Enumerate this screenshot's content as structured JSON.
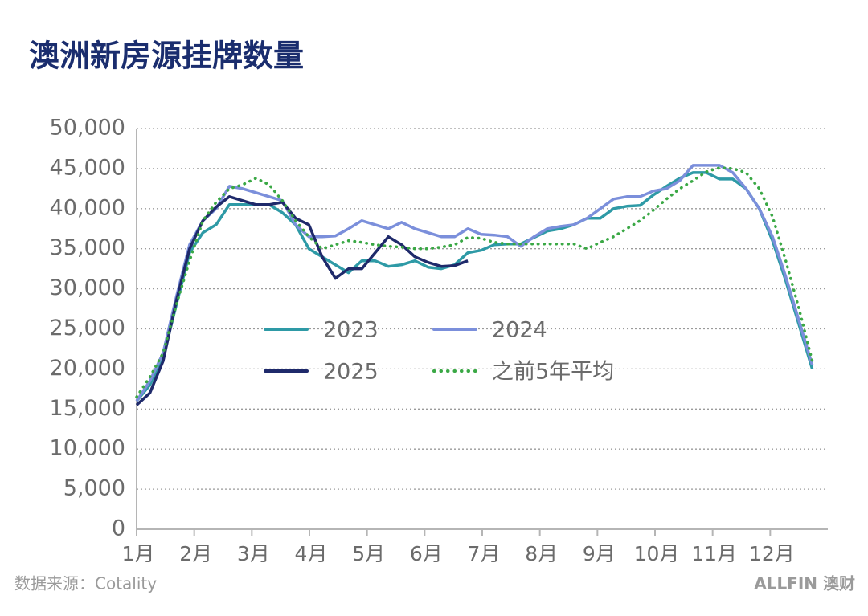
{
  "chart_data": {
    "type": "line",
    "title": "澳洲新房源挂牌数量",
    "source": "数据来源：Cotality",
    "brand": "ALLFIN 澳财",
    "x": [
      1,
      1.23,
      1.46,
      1.69,
      1.92,
      2.15,
      2.38,
      2.61,
      2.84,
      3.07,
      3.3,
      3.53,
      3.76,
      3.99,
      4.22,
      4.45,
      4.68,
      4.91,
      5.14,
      5.37,
      5.6,
      5.83,
      6.06,
      6.29,
      6.52,
      6.75,
      6.98,
      7.21,
      7.44,
      7.67,
      7.9,
      8.13,
      8.36,
      8.59,
      8.82,
      9.05,
      9.28,
      9.51,
      9.74,
      9.97,
      10.2,
      10.43,
      10.66,
      10.89,
      11.12,
      11.35,
      11.58,
      11.81,
      12.04,
      12.27,
      12.5,
      12.73
    ],
    "series": [
      {
        "name": "2023",
        "color": "#2e9aa6",
        "dash": false,
        "values": [
          16000,
          18000,
          21500,
          28000,
          34500,
          37000,
          38000,
          40500,
          40500,
          40500,
          40500,
          39500,
          38000,
          35000,
          34000,
          33000,
          32000,
          33500,
          33500,
          32800,
          33000,
          33500,
          32700,
          32500,
          33000,
          34500,
          34800,
          35500,
          35600,
          35600,
          36400,
          37200,
          37500,
          38000,
          38800,
          38800,
          40000,
          40300,
          40400,
          41700,
          42800,
          43800,
          44500,
          44500,
          43700,
          43700,
          42500,
          40000,
          36000,
          31000,
          25500,
          20000
        ]
      },
      {
        "name": "2024",
        "color": "#7b8fdb",
        "dash": false,
        "values": [
          16000,
          18500,
          22000,
          29000,
          35500,
          38500,
          40000,
          42800,
          42500,
          42000,
          41500,
          41000,
          38000,
          36500,
          36500,
          36600,
          37500,
          38500,
          38000,
          37500,
          38300,
          37500,
          37000,
          36500,
          36500,
          37500,
          36800,
          36700,
          36500,
          35300,
          36500,
          37500,
          37800,
          38000,
          38800,
          40000,
          41200,
          41500,
          41500,
          42200,
          42500,
          43500,
          45400,
          45400,
          45400,
          44500,
          42500,
          40000,
          36500,
          31500,
          26000,
          20500
        ]
      },
      {
        "name": "2025",
        "color": "#1f2a6b",
        "dash": false,
        "values": [
          15500,
          17000,
          21000,
          28500,
          35000,
          38500,
          40200,
          41500,
          41000,
          40500,
          40500,
          40800,
          38800,
          38000,
          34000,
          31300,
          32500,
          32500,
          34500,
          36500,
          35500,
          34000,
          33300,
          32800,
          32900,
          33500,
          null,
          null,
          null,
          null,
          null,
          null,
          null,
          null,
          null,
          null,
          null,
          null,
          null,
          null,
          null,
          null,
          null,
          null,
          null,
          null,
          null,
          null,
          null,
          null,
          null,
          null
        ]
      },
      {
        "name": "之前5年平均",
        "color": "#3aa845",
        "dash": true,
        "values": [
          16500,
          19000,
          22000,
          28000,
          33500,
          38500,
          40800,
          42500,
          43000,
          43800,
          43000,
          41000,
          38500,
          36500,
          35000,
          35500,
          36000,
          35800,
          35500,
          35300,
          35200,
          35000,
          35000,
          35200,
          35500,
          36400,
          36300,
          35800,
          35600,
          35600,
          35600,
          35600,
          35600,
          35600,
          35000,
          35800,
          36500,
          37500,
          38500,
          39800,
          41200,
          42500,
          43500,
          44600,
          45100,
          45000,
          44500,
          42500,
          39000,
          33500,
          27500,
          21000
        ]
      }
    ],
    "xlim": [
      1,
      13
    ],
    "xticks": [
      {
        "value": 1,
        "label": "1月"
      },
      {
        "value": 2,
        "label": "2月"
      },
      {
        "value": 3,
        "label": "3月"
      },
      {
        "value": 4,
        "label": "4月"
      },
      {
        "value": 5,
        "label": "5月"
      },
      {
        "value": 6,
        "label": "6月"
      },
      {
        "value": 7,
        "label": "7月"
      },
      {
        "value": 8,
        "label": "8月"
      },
      {
        "value": 9,
        "label": "9月"
      },
      {
        "value": 10,
        "label": "10月"
      },
      {
        "value": 11,
        "label": "11月"
      },
      {
        "value": 12,
        "label": "12月"
      }
    ],
    "ylim": [
      0,
      50000
    ],
    "yticks": [
      0,
      {
        "value": 5000,
        "label": "5,000"
      },
      {
        "value": 10000,
        "label": "10,000"
      },
      {
        "value": 15000,
        "label": "15,000"
      },
      {
        "value": 20000,
        "label": "20,000"
      },
      {
        "value": 25000,
        "label": "25,000"
      },
      {
        "value": 30000,
        "label": "30,000"
      },
      {
        "value": 35000,
        "label": "35,000"
      },
      {
        "value": 40000,
        "label": "40,000"
      },
      {
        "value": 45000,
        "label": "45,000"
      },
      {
        "value": 50000,
        "label": "50,000"
      }
    ],
    "grid": true,
    "legend": "center"
  }
}
